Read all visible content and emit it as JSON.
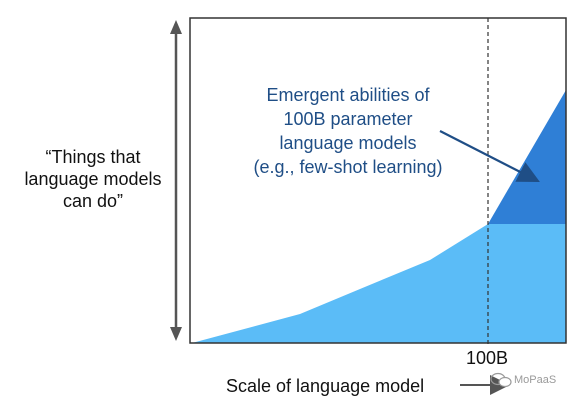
{
  "y_label": [
    "“Things that",
    "language models",
    "can do”"
  ],
  "x_label": "Scale of language model",
  "threshold_label": "100B",
  "annotation": [
    "Emergent abilities of",
    "100B parameter",
    "language models",
    "(e.g., few-shot learning)"
  ],
  "watermarks": {
    "right": "MoPaaS"
  },
  "colors": {
    "light_area": "#5bbcf7",
    "emergent_area": "#2f7fd6",
    "annotation_text": "#1f4e86",
    "frame": "#333333"
  }
}
